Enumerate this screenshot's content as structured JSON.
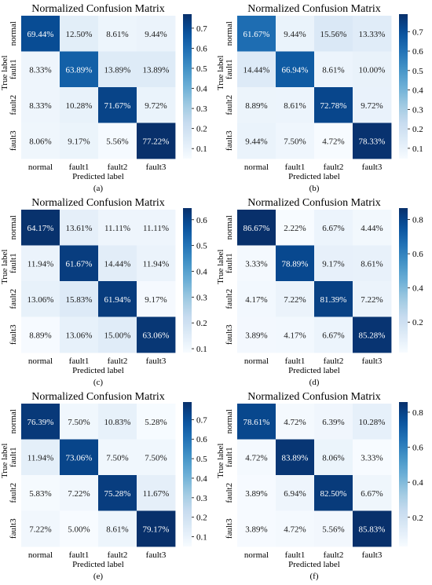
{
  "figure": {
    "ylabel": "True label",
    "xlabel": "Predicted label",
    "colormap": {
      "light": "#f7fbff",
      "dark": "#08306b"
    }
  },
  "chart_data": [
    {
      "type": "heatmap",
      "title": "Normalized Confusion Matrix",
      "panel_label": "(a)",
      "xlabel": "Predicted label",
      "ylabel": "True label",
      "row_labels": [
        "normal",
        "fault1",
        "fault2",
        "fault3"
      ],
      "col_labels": [
        "normal",
        "fault1",
        "fault2",
        "fault3"
      ],
      "values": [
        [
          69.44,
          12.5,
          8.61,
          9.44
        ],
        [
          8.33,
          63.89,
          13.89,
          13.89
        ],
        [
          8.33,
          10.28,
          71.67,
          9.72
        ],
        [
          8.06,
          9.17,
          5.56,
          77.22
        ]
      ],
      "colorbar": {
        "min": 0.05,
        "max": 0.77,
        "ticks": [
          0.1,
          0.2,
          0.3,
          0.4,
          0.5,
          0.6,
          0.7
        ]
      }
    },
    {
      "type": "heatmap",
      "title": "Normalized Confusion Matrix",
      "panel_label": "(b)",
      "xlabel": "Predicted label",
      "ylabel": "True label",
      "row_labels": [
        "normal",
        "fault1",
        "fault2",
        "fault3"
      ],
      "col_labels": [
        "normal",
        "fault1",
        "fault2",
        "fault3"
      ],
      "values": [
        [
          61.67,
          9.44,
          15.56,
          13.33
        ],
        [
          14.44,
          66.94,
          8.61,
          10.0
        ],
        [
          8.89,
          8.61,
          72.78,
          9.72
        ],
        [
          9.44,
          7.5,
          4.72,
          78.33
        ]
      ],
      "colorbar": {
        "min": 0.047,
        "max": 0.79,
        "ticks": [
          0.1,
          0.2,
          0.3,
          0.4,
          0.5,
          0.6,
          0.7
        ]
      }
    },
    {
      "type": "heatmap",
      "title": "Normalized Confusion Matrix",
      "panel_label": "(c)",
      "xlabel": "Predicted label",
      "ylabel": "True label",
      "row_labels": [
        "normal",
        "fault1",
        "fault2",
        "fault3"
      ],
      "col_labels": [
        "normal",
        "fault1",
        "fault2",
        "fault3"
      ],
      "values": [
        [
          64.17,
          13.61,
          11.11,
          11.11
        ],
        [
          11.94,
          61.67,
          14.44,
          11.94
        ],
        [
          13.06,
          15.83,
          61.94,
          9.17
        ],
        [
          8.89,
          13.06,
          15.0,
          63.06
        ]
      ],
      "colorbar": {
        "min": 0.085,
        "max": 0.645,
        "ticks": [
          0.1,
          0.2,
          0.3,
          0.4,
          0.5,
          0.6
        ]
      }
    },
    {
      "type": "heatmap",
      "title": "Normalized Confusion Matrix",
      "panel_label": "(d)",
      "xlabel": "Predicted label",
      "ylabel": "True label",
      "row_labels": [
        "normal",
        "fault1",
        "fault2",
        "fault3"
      ],
      "col_labels": [
        "normal",
        "fault1",
        "fault2",
        "fault3"
      ],
      "values": [
        [
          86.67,
          2.22,
          6.67,
          4.44
        ],
        [
          3.33,
          78.89,
          9.17,
          8.61
        ],
        [
          4.17,
          7.22,
          81.39,
          7.22
        ],
        [
          3.89,
          4.17,
          6.67,
          85.28
        ]
      ],
      "colorbar": {
        "min": 0.022,
        "max": 0.867,
        "ticks": [
          0.2,
          0.4,
          0.6,
          0.8
        ]
      }
    },
    {
      "type": "heatmap",
      "title": "Normalized Confusion Matrix",
      "panel_label": "(e)",
      "xlabel": "Predicted label",
      "ylabel": "True label",
      "row_labels": [
        "normal",
        "fault1",
        "fault2",
        "fault3"
      ],
      "col_labels": [
        "normal",
        "fault1",
        "fault2",
        "fault3"
      ],
      "values": [
        [
          76.39,
          7.5,
          10.83,
          5.28
        ],
        [
          11.94,
          73.06,
          7.5,
          7.5
        ],
        [
          5.83,
          7.22,
          75.28,
          11.67
        ],
        [
          7.22,
          5.0,
          8.61,
          79.17
        ]
      ],
      "colorbar": {
        "min": 0.05,
        "max": 0.79,
        "ticks": [
          0.1,
          0.2,
          0.3,
          0.4,
          0.5,
          0.6,
          0.7
        ]
      }
    },
    {
      "type": "heatmap",
      "title": "Normalized Confusion Matrix",
      "panel_label": "(f)",
      "xlabel": "Predicted label",
      "ylabel": "True label",
      "row_labels": [
        "normal",
        "fault1",
        "fault2",
        "fault3"
      ],
      "col_labels": [
        "normal",
        "fault1",
        "fault2",
        "fault3"
      ],
      "values": [
        [
          78.61,
          4.72,
          6.39,
          10.28
        ],
        [
          4.72,
          83.89,
          8.06,
          3.33
        ],
        [
          3.89,
          6.94,
          82.5,
          6.67
        ],
        [
          3.89,
          4.72,
          5.56,
          85.83
        ]
      ],
      "colorbar": {
        "min": 0.033,
        "max": 0.858,
        "ticks": [
          0.2,
          0.4,
          0.6,
          0.8
        ]
      }
    }
  ]
}
